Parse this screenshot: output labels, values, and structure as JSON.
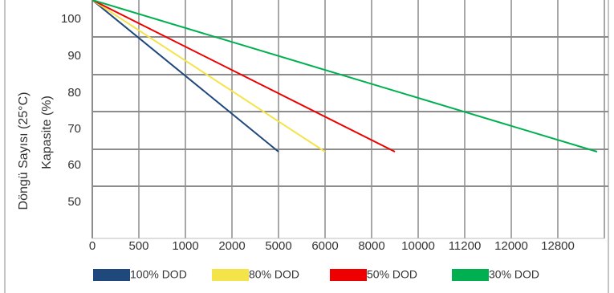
{
  "chart_data": {
    "type": "line",
    "ylabel_lines": [
      "Döngü Sayısı (25°C)",
      "Kapasite (%)"
    ],
    "x_tick_labels": [
      "0",
      "500",
      "1000",
      "2000",
      "5000",
      "6000",
      "8000",
      "10000",
      "11200",
      "12000",
      "12800"
    ],
    "y_tick_labels": [
      "50",
      "60",
      "70",
      "80",
      "90",
      "100"
    ],
    "ylim": [
      40,
      106
    ],
    "grid": true,
    "legend_position": "bottom",
    "series": [
      {
        "name": "100% DOD",
        "color": "#1f497d",
        "x": [
          0,
          5000
        ],
        "y": [
          106,
          64
        ]
      },
      {
        "name": "80% DOD",
        "color": "#f5e34a",
        "x": [
          0,
          6000
        ],
        "y": [
          106,
          64
        ]
      },
      {
        "name": "50% DOD",
        "color": "#ee0000",
        "x": [
          0,
          9000
        ],
        "y": [
          106,
          64
        ]
      },
      {
        "name": "30% DOD",
        "color": "#00b050",
        "x": [
          0,
          14000
        ],
        "y": [
          106,
          64
        ]
      }
    ]
  }
}
